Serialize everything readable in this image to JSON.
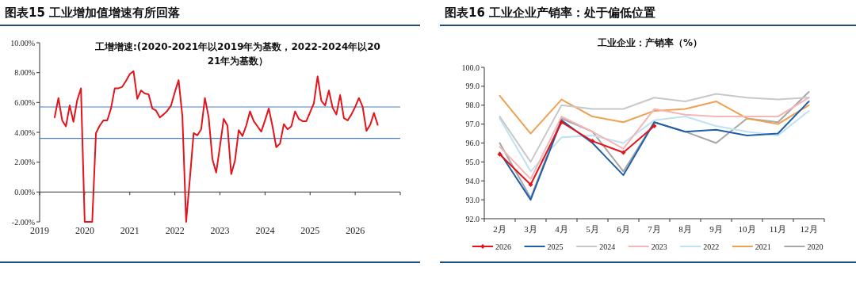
{
  "chart_data": [
    {
      "type": "line",
      "title": "图表15 工业增加值增速有所回落",
      "subtitle": "工增增速:(2020-2021年以2019年为基数，2022-2024年以2021年为基数）",
      "x": [
        "2019-05",
        "2019-06",
        "2019-07",
        "2019-08",
        "2019-09",
        "2019-10",
        "2019-11",
        "2019-12",
        "2020-01",
        "2020-02",
        "2020-03",
        "2020-04",
        "2020-05",
        "2020-06",
        "2020-07",
        "2020-08",
        "2020-09",
        "2020-10",
        "2020-11",
        "2020-12",
        "2021-01",
        "2021-02",
        "2021-03",
        "2021-04",
        "2021-05",
        "2021-06",
        "2021-07",
        "2021-08",
        "2021-09",
        "2021-10",
        "2021-11",
        "2021-12",
        "2022-01",
        "2022-02",
        "2022-03",
        "2022-04",
        "2022-05",
        "2022-06",
        "2022-07",
        "2022-08",
        "2022-09",
        "2022-10",
        "2022-11",
        "2022-12",
        "2023-01",
        "2023-02",
        "2023-03",
        "2023-04",
        "2023-05",
        "2023-06",
        "2023-07",
        "2023-08",
        "2023-09",
        "2023-10",
        "2023-11",
        "2023-12",
        "2024-01",
        "2024-02",
        "2024-03",
        "2024-04",
        "2024-05",
        "2024-06",
        "2024-07",
        "2024-08",
        "2024-09",
        "2024-10",
        "2024-11",
        "2024-12",
        "2025-01",
        "2025-02",
        "2025-03",
        "2025-04",
        "2025-05",
        "2025-06",
        "2025-07",
        "2025-08",
        "2025-09",
        "2025-10",
        "2025-11",
        "2025-12",
        "2026-01",
        "2026-02",
        "2026-03",
        "2026-04",
        "2026-05",
        "2026-06",
        "2026-07"
      ],
      "series": [
        {
          "color": "#e3141b",
          "values": [
            5.0,
            6.3,
            4.8,
            4.4,
            5.8,
            4.7,
            6.15,
            6.95,
            -2,
            -2,
            -2,
            3.95,
            4.45,
            4.8,
            4.8,
            5.6,
            6.95,
            6.95,
            7.05,
            7.45,
            7.9,
            8.1,
            6.25,
            6.8,
            6.6,
            6.55,
            5.6,
            5.45,
            5.0,
            5.2,
            5.45,
            5.8,
            6.7,
            7.5,
            5.1,
            -2,
            0.9,
            3.95,
            3.8,
            4.2,
            6.3,
            5.0,
            2.2,
            1.3,
            3.05,
            4.9,
            4.45,
            1.2,
            2.1,
            4.15,
            3.75,
            4.45,
            5.4,
            4.75,
            4.4,
            4.05,
            4.8,
            5.6,
            4.4,
            3.0,
            3.25,
            4.55,
            4.2,
            4.4,
            5.4,
            4.9,
            4.75,
            4.75,
            5.35,
            5.95,
            7.75,
            6.1,
            5.8,
            6.8,
            5.65,
            5.2,
            6.5,
            4.95,
            4.8,
            5.2,
            5.7,
            6.3,
            5.7,
            4.1,
            4.5,
            5.3,
            4.5
          ]
        }
      ],
      "xlim": [
        "2019",
        "2027"
      ],
      "xticks": [
        "2019",
        "2020",
        "2021",
        "2022",
        "2023",
        "2024",
        "2025",
        "2026"
      ],
      "ylim": [
        -2,
        10
      ],
      "yticks": [
        {
          "value": -2,
          "label": "-2.00%"
        },
        {
          "value": 0,
          "label": "0.00%"
        },
        {
          "value": 2,
          "label": "2.00%"
        },
        {
          "value": 4,
          "label": "4.00%"
        },
        {
          "value": 6,
          "label": "6.00%"
        },
        {
          "value": 8,
          "label": "8.00%"
        },
        {
          "value": 10,
          "label": "10.00%"
        }
      ],
      "ref_lines": [
        {
          "axis": "y",
          "value": 5.7,
          "color": "#4a7ebb"
        },
        {
          "axis": "y",
          "value": 3.6,
          "color": "#4a7ebb"
        }
      ]
    },
    {
      "type": "line",
      "title": "图表16 工业企业产销率：处于偏低位置",
      "subtitle": "工业企业：产销率（%）",
      "categories": [
        "2月",
        "3月",
        "4月",
        "5月",
        "6月",
        "7月",
        "8月",
        "9月",
        "10月",
        "11月",
        "12月"
      ],
      "series": [
        {
          "name": "2026",
          "color": "#e3141b",
          "marker": "diamond",
          "values": [
            95.4,
            93.8,
            97.1,
            96.1,
            95.5,
            96.9,
            null,
            null,
            null,
            null,
            null
          ]
        },
        {
          "name": "2025",
          "color": "#1f5fa8",
          "values": [
            95.5,
            93.0,
            97.2,
            96.0,
            94.3,
            97.1,
            96.6,
            96.7,
            96.4,
            96.5,
            98.2
          ]
        },
        {
          "name": "2024",
          "color": "#c8c8c8",
          "values": [
            97.4,
            95.0,
            98.0,
            97.8,
            97.8,
            98.4,
            98.2,
            98.6,
            98.4,
            98.3,
            98.4
          ]
        },
        {
          "name": "2023",
          "color": "#f4b6b6",
          "values": [
            95.8,
            94.1,
            97.4,
            96.6,
            95.7,
            97.8,
            97.5,
            97.4,
            97.4,
            97.4,
            98.4
          ]
        },
        {
          "name": "2022",
          "color": "#bfe1f2",
          "values": [
            97.3,
            94.5,
            96.3,
            96.4,
            96.0,
            97.2,
            97.4,
            96.9,
            96.6,
            96.4,
            97.7
          ]
        },
        {
          "name": "2021",
          "color": "#f0a050",
          "values": [
            98.5,
            96.5,
            98.3,
            97.4,
            97.1,
            97.7,
            97.8,
            98.2,
            97.3,
            97.0,
            98.0
          ]
        },
        {
          "name": "2020",
          "color": "#a6a6a6",
          "values": [
            96.0,
            93.1,
            97.3,
            96.6,
            94.5,
            97.1,
            96.6,
            96.0,
            97.3,
            97.1,
            98.7
          ]
        }
      ],
      "ylim": [
        92,
        100
      ],
      "yticks": [
        {
          "value": 92,
          "label": "92.0"
        },
        {
          "value": 93,
          "label": "93.0"
        },
        {
          "value": 94,
          "label": "94.0"
        },
        {
          "value": 95,
          "label": "95.0"
        },
        {
          "value": 96,
          "label": "96.0"
        },
        {
          "value": 97,
          "label": "97.0"
        },
        {
          "value": 98,
          "label": "98.0"
        },
        {
          "value": 99,
          "label": "99.0"
        },
        {
          "value": 100,
          "label": "100.0"
        }
      ],
      "legend": "bottom"
    }
  ]
}
